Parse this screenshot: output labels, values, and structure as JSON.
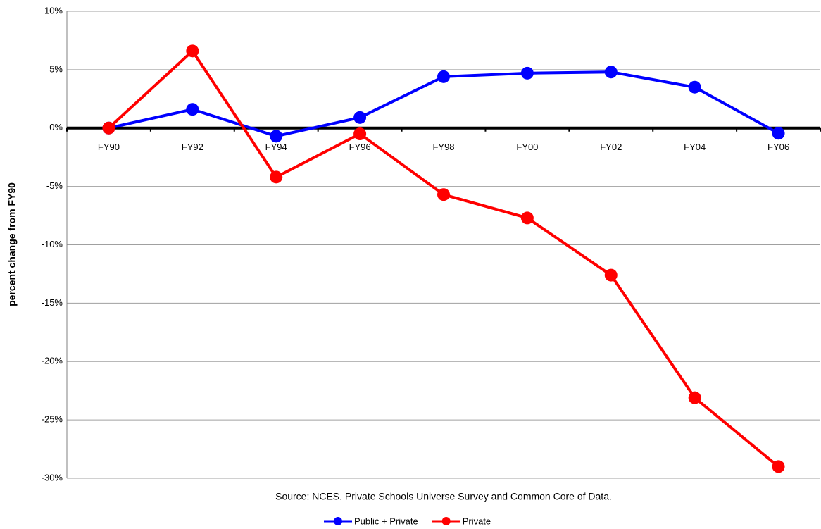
{
  "chart_data": {
    "type": "line",
    "y_label": "percent change from FY90",
    "source": "Source:  NCES.   Private Schools Universe Survey and Common Core of Data.",
    "categories": [
      "FY90",
      "FY92",
      "FY94",
      "FY96",
      "FY98",
      "FY00",
      "FY02",
      "FY04",
      "FY06"
    ],
    "series": [
      {
        "name": "Public + Private",
        "color": "#0000ff",
        "values": [
          0,
          1.6,
          -0.7,
          0.9,
          4.4,
          4.7,
          4.8,
          3.5,
          -0.45
        ]
      },
      {
        "name": "Private",
        "color": "#ff0000",
        "values": [
          0,
          6.6,
          -4.2,
          -0.5,
          -5.7,
          -7.7,
          -12.6,
          -23.1,
          -29.0
        ]
      }
    ],
    "ylim": [
      -30,
      10
    ],
    "yticks": [
      {
        "value": -30,
        "label": "-30%"
      },
      {
        "value": -25,
        "label": "-25%"
      },
      {
        "value": -20,
        "label": "-20%"
      },
      {
        "value": -15,
        "label": "-15%"
      },
      {
        "value": -10,
        "label": "-10%"
      },
      {
        "value": -5,
        "label": "-5%"
      },
      {
        "value": 0,
        "label": "0%"
      },
      {
        "value": 5,
        "label": "5%"
      },
      {
        "value": 10,
        "label": "10%"
      }
    ],
    "grid": true,
    "legend": "bottom"
  }
}
